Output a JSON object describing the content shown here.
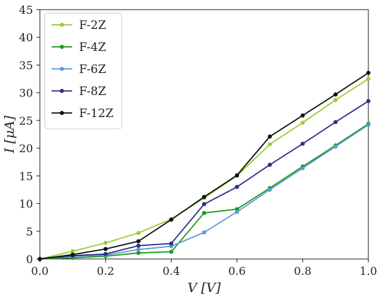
{
  "chart_data": {
    "type": "line",
    "title": "",
    "xlabel": "V [V]",
    "ylabel": "I [μA]",
    "xlim": [
      0.0,
      1.0
    ],
    "ylim": [
      0,
      45
    ],
    "xticks": [
      "0.0",
      "0.2",
      "0.4",
      "0.6",
      "0.8",
      "1.0"
    ],
    "yticks": [
      "0",
      "5",
      "10",
      "15",
      "20",
      "25",
      "30",
      "35",
      "40",
      "45"
    ],
    "grid": false,
    "legend_position": "top-left",
    "x": [
      0.0,
      0.1,
      0.2,
      0.3,
      0.4,
      0.5,
      0.6,
      0.7,
      0.8,
      0.9,
      1.0
    ],
    "series": [
      {
        "name": "F-2Z",
        "color": "#9acd32",
        "values": [
          0.0,
          1.4,
          2.9,
          4.7,
          7.2,
          11.0,
          15.0,
          20.7,
          24.6,
          28.7,
          32.5
        ]
      },
      {
        "name": "F-4Z",
        "color": "#1c9a1c",
        "values": [
          0.0,
          0.2,
          0.5,
          1.1,
          1.3,
          8.3,
          9.0,
          12.8,
          16.7,
          20.5,
          24.4
        ]
      },
      {
        "name": "F-6Z",
        "color": "#5b9bd5",
        "values": [
          0.0,
          0.5,
          0.7,
          1.7,
          2.3,
          4.8,
          8.5,
          12.5,
          16.4,
          20.3,
          24.2
        ]
      },
      {
        "name": "F-8Z",
        "color": "#2c2f8a",
        "values": [
          0.0,
          0.6,
          0.9,
          2.4,
          2.8,
          9.9,
          13.0,
          17.0,
          20.8,
          24.7,
          28.5
        ]
      },
      {
        "name": "F-12Z",
        "color": "#111111",
        "values": [
          0.0,
          0.8,
          1.8,
          3.2,
          7.1,
          11.2,
          15.1,
          22.1,
          25.9,
          29.7,
          33.6
        ]
      }
    ]
  }
}
